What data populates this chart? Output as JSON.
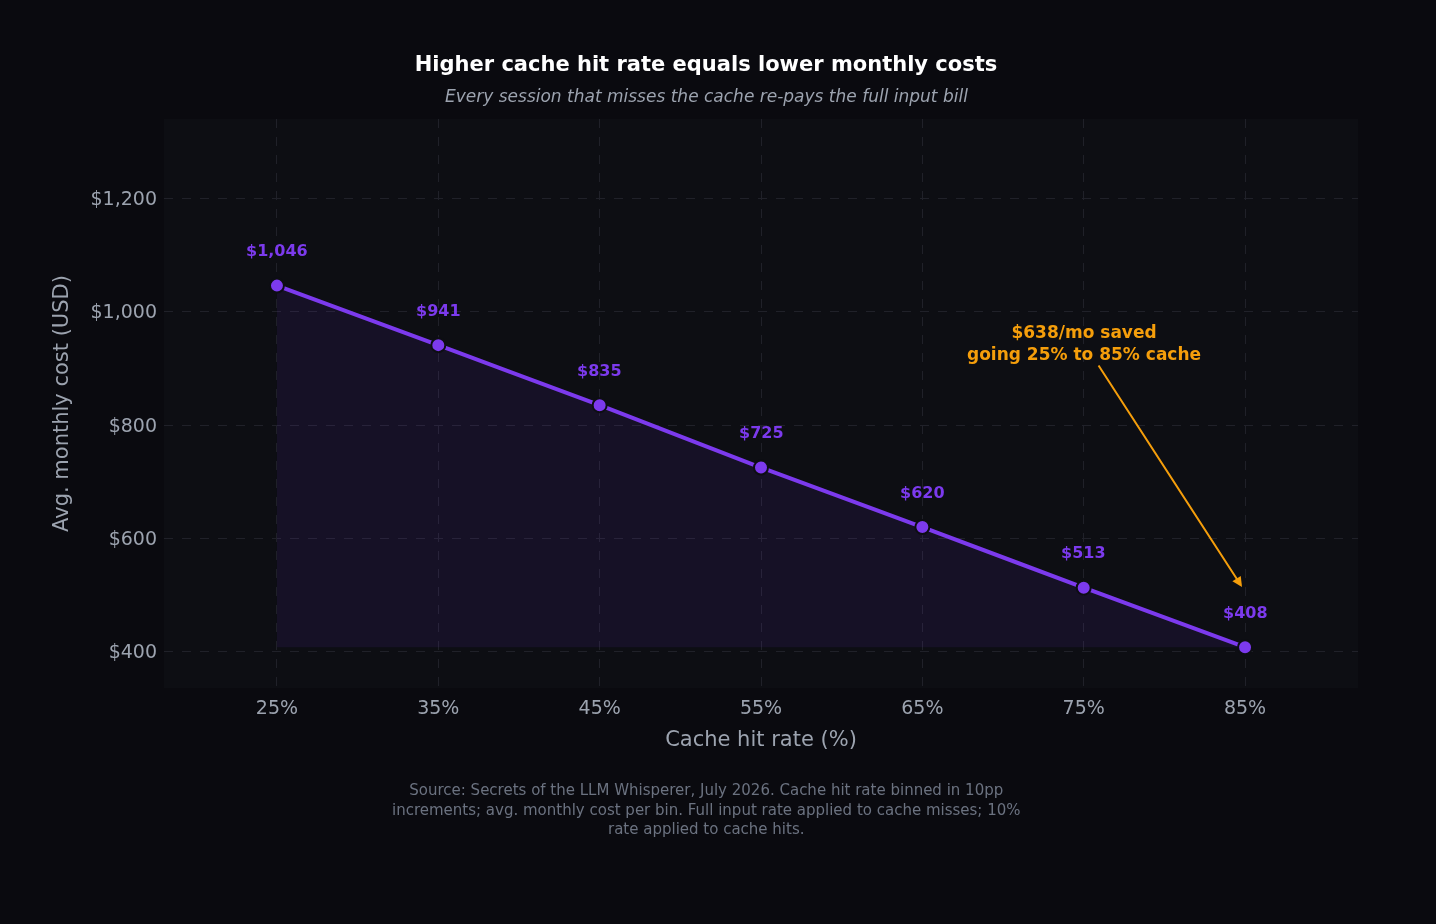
{
  "chart_data": {
    "type": "area",
    "title": "Higher cache hit rate equals lower monthly costs",
    "subtitle": "Every session that misses the cache re-pays the full input bill",
    "xlabel": "Cache hit rate (%)",
    "ylabel": "Avg. monthly cost (USD)",
    "x": [
      25,
      35,
      45,
      55,
      65,
      75,
      85
    ],
    "values": [
      1046,
      941,
      835,
      725,
      620,
      513,
      408
    ],
    "color": "#7c3aed",
    "value_labels": [
      "$1,046",
      "$941",
      "$835",
      "$725",
      "$620",
      "$513",
      "$408"
    ],
    "xlim": [
      18,
      92
    ],
    "xticks": [
      {
        "value": 25,
        "label": "25%"
      },
      {
        "value": 35,
        "label": "35%"
      },
      {
        "value": 45,
        "label": "45%"
      },
      {
        "value": 55,
        "label": "55%"
      },
      {
        "value": 65,
        "label": "65%"
      },
      {
        "value": 75,
        "label": "75%"
      },
      {
        "value": 85,
        "label": "85%"
      }
    ],
    "ylim": [
      336,
      1340
    ],
    "yticks": [
      {
        "value": 400,
        "label": "$400"
      },
      {
        "value": 600,
        "label": "$600"
      },
      {
        "value": 800,
        "label": "$800"
      },
      {
        "value": 1000,
        "label": "$1,000"
      },
      {
        "value": 1200,
        "label": "$1,200"
      }
    ],
    "grid": true,
    "marker": "circle",
    "line_style": "solid",
    "annotations": [
      "$638/mo saved\ngoing 25% to 85% cache",
      "Source: Secrets of the LLM Whisperer, July 2026. Cache hit rate binned in 10pp increments; avg. monthly cost per bin. Full input rate applied to cache misses; 10% rate applied to cache hits."
    ]
  }
}
